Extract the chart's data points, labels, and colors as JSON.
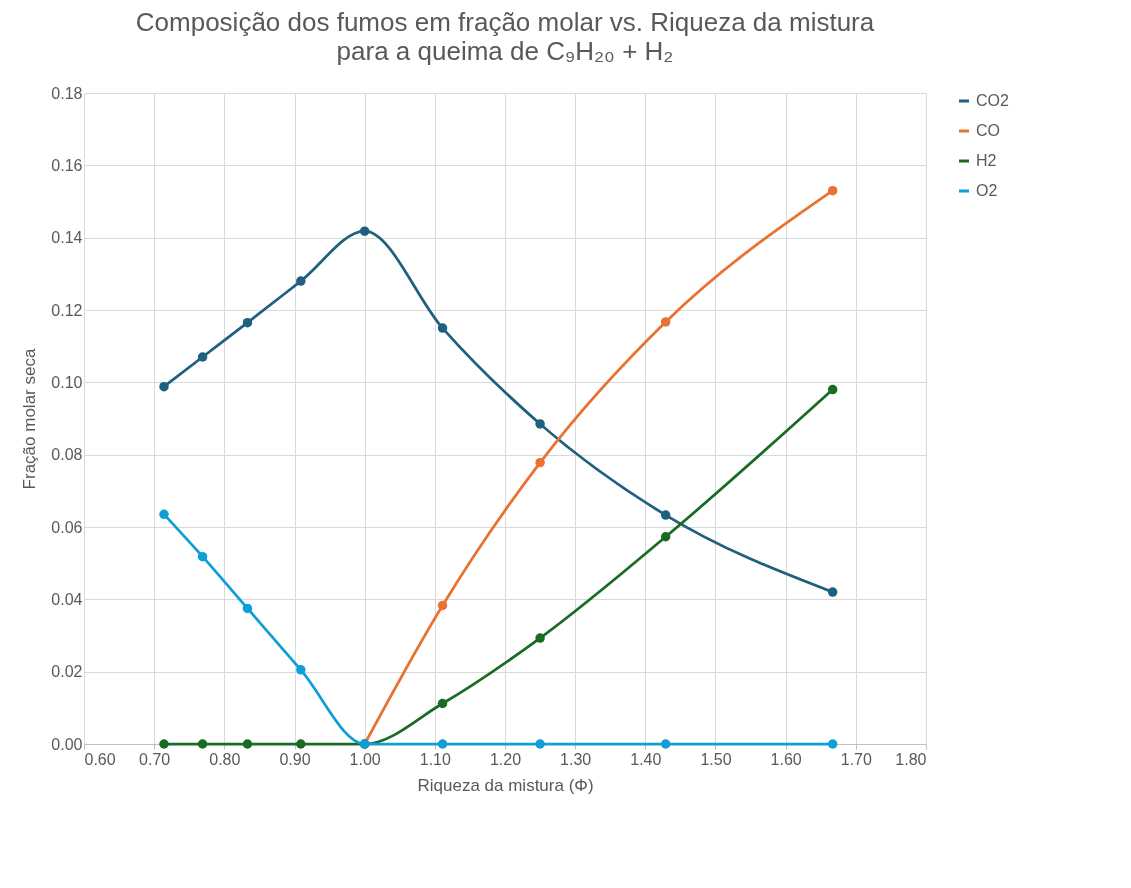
{
  "chart_data": {
    "type": "line",
    "title": "Composição dos fumos em fração molar vs. Riqueza da mistura",
    "subtitle": "para a queima de C₉H₂₀ + H₂",
    "xlabel": "Riqueza da mistura (Φ)",
    "ylabel": "Fração molar seca",
    "x": [
      0.714,
      0.769,
      0.833,
      0.909,
      1.0,
      1.111,
      1.25,
      1.429,
      1.667
    ],
    "series": [
      {
        "name": "CO2",
        "color": "#1f5f80",
        "values": [
          0.0988,
          0.107,
          0.1165,
          0.128,
          0.1418,
          0.115,
          0.0885,
          0.0633,
          0.042
        ]
      },
      {
        "name": "CO",
        "color": "#e97132",
        "values": [
          null,
          null,
          null,
          null,
          0,
          0.0383,
          0.0778,
          0.1167,
          0.153
        ]
      },
      {
        "name": "H2",
        "color": "#196b24",
        "values": [
          0,
          0,
          0,
          0,
          0,
          0.0112,
          0.0293,
          0.0573,
          0.098
        ]
      },
      {
        "name": "O2",
        "color": "#0f9ed5",
        "values": [
          0.0635,
          0.0518,
          0.0375,
          0.0205,
          0,
          0,
          0,
          0,
          0
        ]
      }
    ],
    "xlim": [
      0.6,
      1.8
    ],
    "xticks": [
      {
        "value": 0.6,
        "label": "0.60"
      },
      {
        "value": 0.7,
        "label": "0.70"
      },
      {
        "value": 0.8,
        "label": "0.80"
      },
      {
        "value": 0.9,
        "label": "0.90"
      },
      {
        "value": 1.0,
        "label": "1.00"
      },
      {
        "value": 1.1,
        "label": "1.10"
      },
      {
        "value": 1.2,
        "label": "1.20"
      },
      {
        "value": 1.3,
        "label": "1.30"
      },
      {
        "value": 1.4,
        "label": "1.40"
      },
      {
        "value": 1.5,
        "label": "1.50"
      },
      {
        "value": 1.6,
        "label": "1.60"
      },
      {
        "value": 1.7,
        "label": "1.70"
      },
      {
        "value": 1.8,
        "label": "1.80"
      }
    ],
    "ylim": [
      0,
      0.18
    ],
    "yticks": [
      {
        "value": 0,
        "label": "0.00"
      },
      {
        "value": 0.02,
        "label": "0.02"
      },
      {
        "value": 0.04,
        "label": "0.04"
      },
      {
        "value": 0.06,
        "label": "0.06"
      },
      {
        "value": 0.08,
        "label": "0.08"
      },
      {
        "value": 0.1,
        "label": "0.10"
      },
      {
        "value": 0.12,
        "label": "0.12"
      },
      {
        "value": 0.14,
        "label": "0.14"
      },
      {
        "value": 0.16,
        "label": "0.16"
      },
      {
        "value": 0.18,
        "label": "0.18"
      }
    ],
    "grid": true,
    "legend": "right",
    "marker": "circle",
    "line_style": "solid"
  }
}
